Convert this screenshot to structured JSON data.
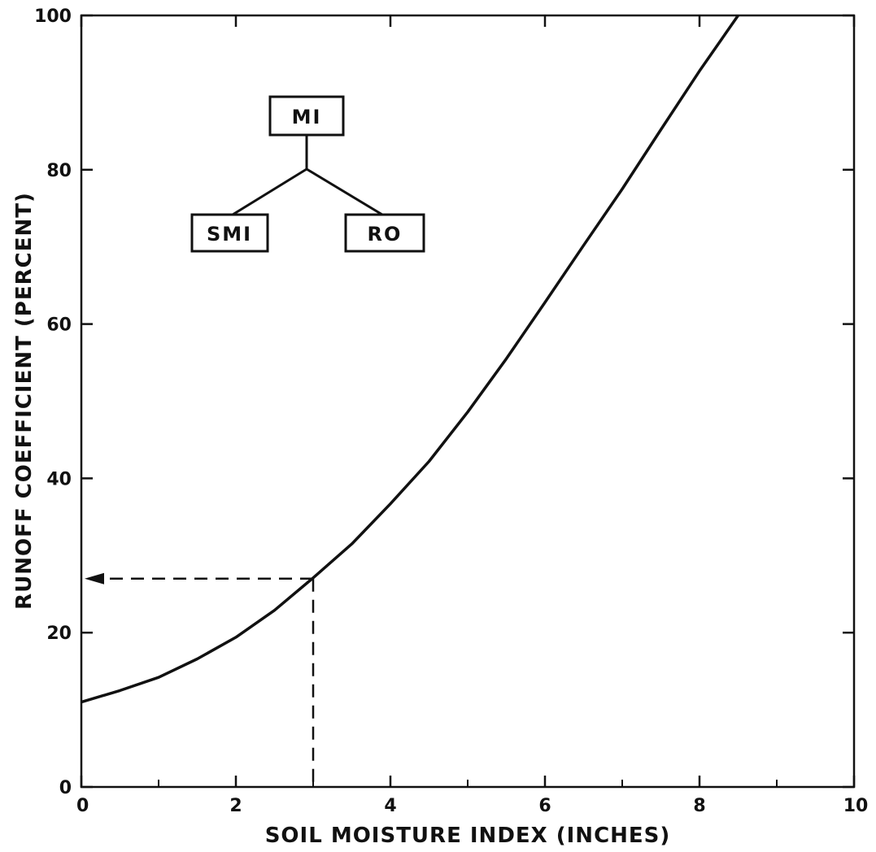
{
  "chart_data": {
    "type": "line",
    "title": "",
    "xlabel": "SOIL  MOISTURE  INDEX  (INCHES)",
    "ylabel": "RUNOFF COEFFICIENT (PERCENT)",
    "xlim": [
      0,
      10
    ],
    "ylim": [
      0,
      100
    ],
    "x_ticks": [
      0,
      2,
      4,
      6,
      8,
      10
    ],
    "x_tick_labels": [
      "0",
      "2",
      "4",
      "6",
      "8",
      "10"
    ],
    "x_minor_ticks": [
      1,
      3,
      5,
      7,
      9
    ],
    "y_ticks": [
      0,
      20,
      40,
      60,
      80,
      100
    ],
    "y_tick_labels": [
      "0",
      "20",
      "40",
      "60",
      "80",
      "100"
    ],
    "grid": false,
    "series": [
      {
        "x": [
          0,
          0.5,
          1,
          1.5,
          2,
          2.5,
          3,
          3.5,
          4,
          4.5,
          5,
          5.5,
          6,
          6.5,
          7,
          7.5,
          8,
          8.5
        ],
        "y": [
          11,
          12.5,
          14.2,
          16.6,
          19.4,
          22.9,
          27.1,
          31.5,
          36.7,
          42.2,
          48.6,
          55.5,
          62.8,
          70.2,
          77.5,
          85.2,
          92.8,
          100
        ]
      }
    ],
    "annotations": {
      "guide_point": {
        "x": 3,
        "y": 27
      },
      "guide_style": "dashed",
      "guide_arrow": "to y-axis"
    },
    "inset_diagram": {
      "nodes": [
        {
          "id": "mi",
          "label": "MI"
        },
        {
          "id": "smi",
          "label": "SMI"
        },
        {
          "id": "ro",
          "label": "RO"
        }
      ]
    }
  }
}
